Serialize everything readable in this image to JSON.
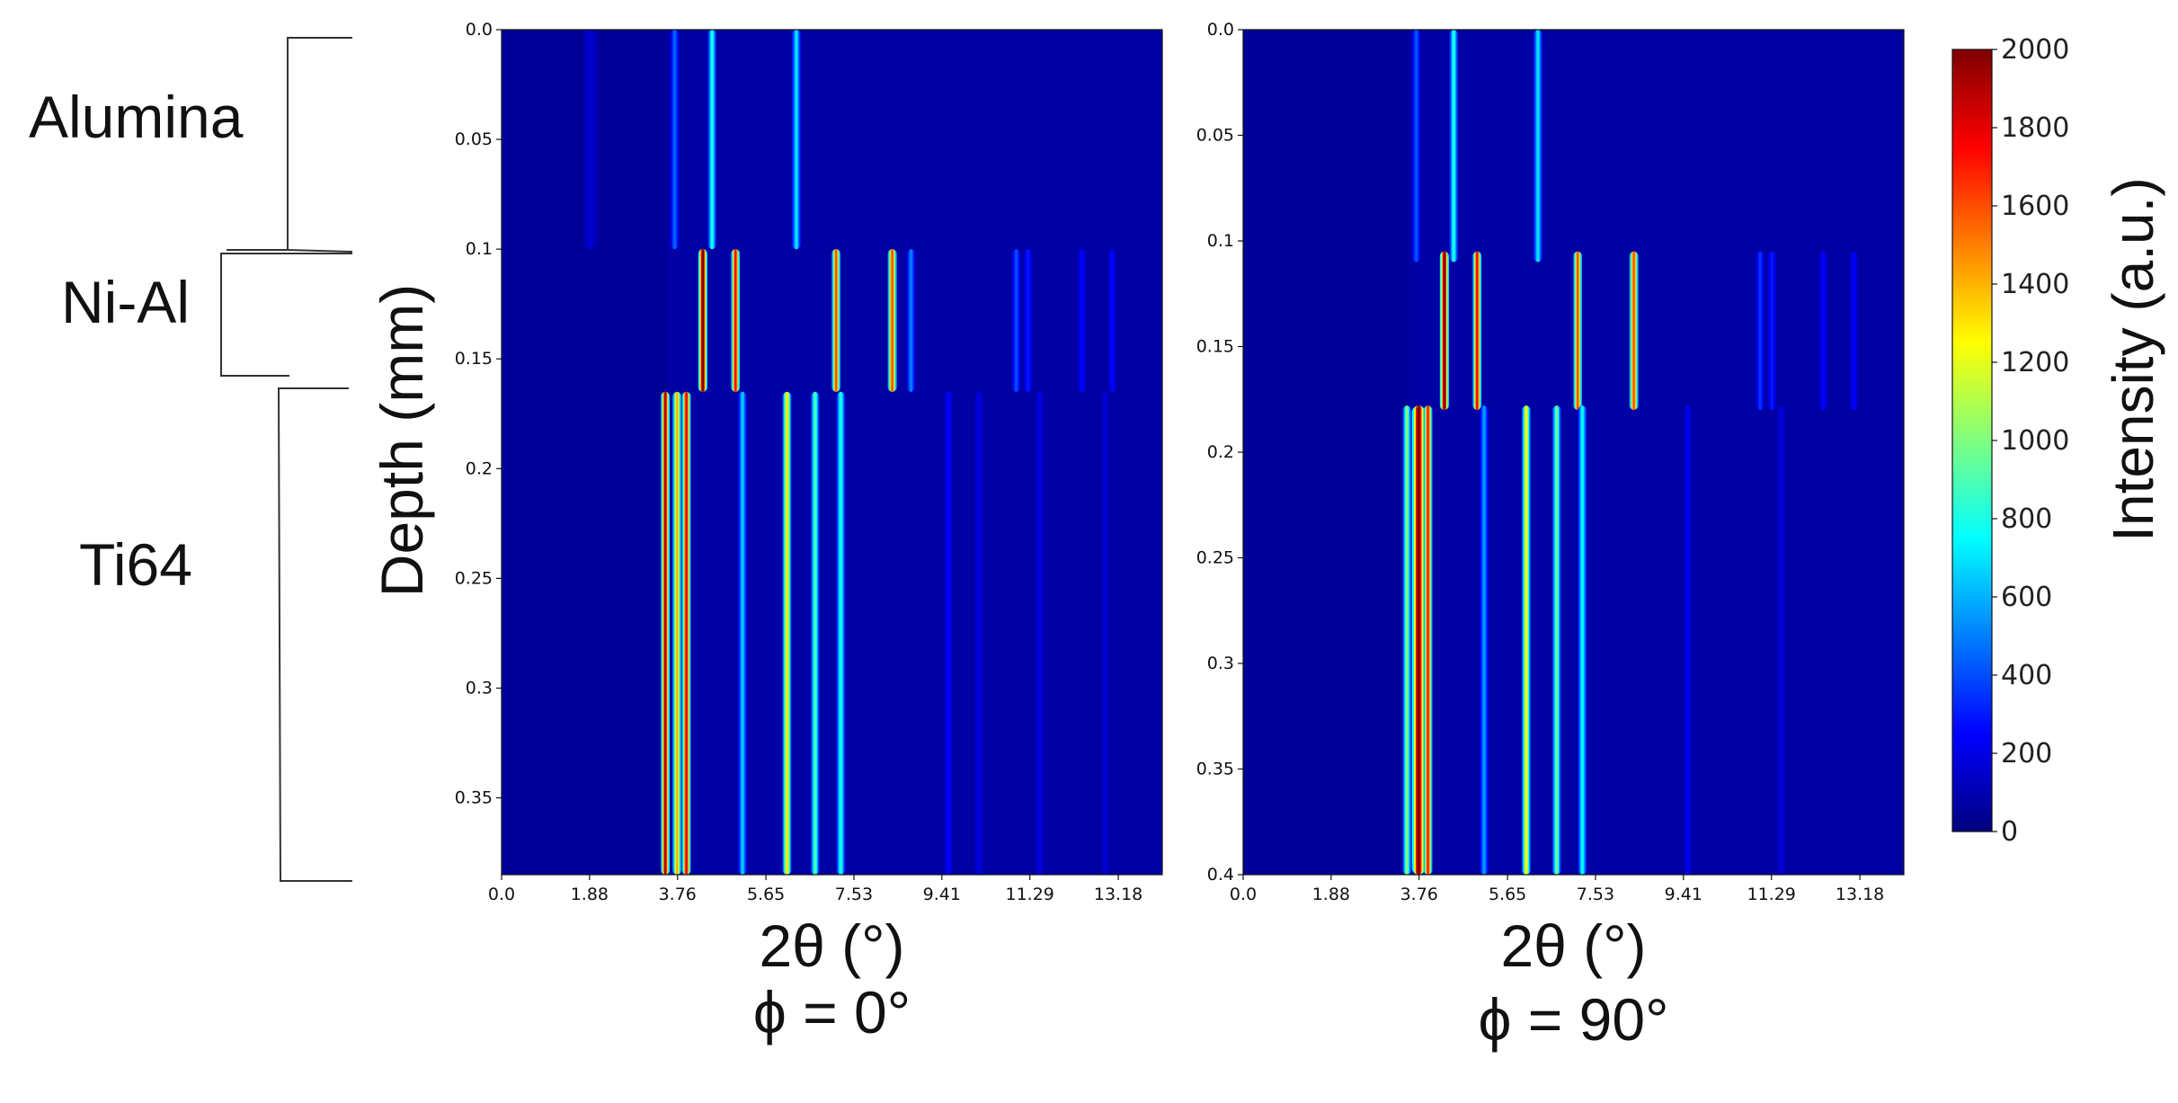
{
  "layers": [
    {
      "name": "Alumina",
      "depth_range": [
        0.0,
        0.1
      ]
    },
    {
      "name": "Ni-Al",
      "depth_range": [
        0.1,
        0.16
      ]
    },
    {
      "name": "Ti64",
      "depth_range": [
        0.16,
        0.385
      ]
    }
  ],
  "colorbar": {
    "label": "Intensity (a.u.)",
    "min": 0,
    "max": 2000,
    "ticks": [
      "0",
      "200",
      "400",
      "600",
      "800",
      "1000",
      "1200",
      "1400",
      "1600",
      "1800",
      "2000"
    ],
    "colormap": [
      "#00007f",
      "#0000ff",
      "#007fff",
      "#00ffff",
      "#7fff7f",
      "#ffff00",
      "#ff7f00",
      "#ff0000",
      "#7f0000"
    ]
  },
  "chart_data": [
    {
      "type": "heatmap",
      "xlabel": "2θ (°)",
      "subtitle": "ϕ = 0°",
      "ylabel": "Depth (mm)",
      "xlim": [
        0,
        14.12
      ],
      "ylim": [
        0.385,
        0.0
      ],
      "x_ticks": [
        "0.0",
        "1.88",
        "3.76",
        "5.65",
        "7.53",
        "9.41",
        "11.29",
        "13.18"
      ],
      "y_ticks": [
        "0.0",
        "0.05",
        "0.1",
        "0.15",
        "0.2",
        "0.25",
        "0.3",
        "0.35"
      ],
      "peaks": [
        {
          "two_theta": 1.9,
          "depth_from": 0.0,
          "depth_to": 0.1,
          "intensity": 160,
          "width": 0.1
        },
        {
          "two_theta": 3.7,
          "depth_from": 0.0,
          "depth_to": 0.1,
          "intensity": 450,
          "width": 0.05
        },
        {
          "two_theta": 4.5,
          "depth_from": 0.0,
          "depth_to": 0.1,
          "intensity": 800,
          "width": 0.05
        },
        {
          "two_theta": 6.3,
          "depth_from": 0.0,
          "depth_to": 0.1,
          "intensity": 700,
          "width": 0.06
        },
        {
          "two_theta": 4.3,
          "depth_from": 0.1,
          "depth_to": 0.165,
          "intensity": 2000,
          "width": 0.06
        },
        {
          "two_theta": 5.0,
          "depth_from": 0.1,
          "depth_to": 0.165,
          "intensity": 1750,
          "width": 0.05
        },
        {
          "two_theta": 7.15,
          "depth_from": 0.1,
          "depth_to": 0.165,
          "intensity": 1600,
          "width": 0.05
        },
        {
          "two_theta": 8.35,
          "depth_from": 0.1,
          "depth_to": 0.165,
          "intensity": 1600,
          "width": 0.06
        },
        {
          "two_theta": 8.75,
          "depth_from": 0.1,
          "depth_to": 0.165,
          "intensity": 500,
          "width": 0.05
        },
        {
          "two_theta": 11.0,
          "depth_from": 0.1,
          "depth_to": 0.165,
          "intensity": 400,
          "width": 0.05
        },
        {
          "two_theta": 11.25,
          "depth_from": 0.1,
          "depth_to": 0.165,
          "intensity": 300,
          "width": 0.04
        },
        {
          "two_theta": 12.4,
          "depth_from": 0.1,
          "depth_to": 0.165,
          "intensity": 250,
          "width": 0.04
        },
        {
          "two_theta": 13.05,
          "depth_from": 0.1,
          "depth_to": 0.165,
          "intensity": 250,
          "width": 0.04
        },
        {
          "two_theta": 3.5,
          "depth_from": 0.165,
          "depth_to": 0.385,
          "intensity": 1900,
          "width": 0.05
        },
        {
          "two_theta": 3.75,
          "depth_from": 0.165,
          "depth_to": 0.385,
          "intensity": 1400,
          "width": 0.06
        },
        {
          "two_theta": 3.95,
          "depth_from": 0.165,
          "depth_to": 0.385,
          "intensity": 1800,
          "width": 0.05
        },
        {
          "two_theta": 5.15,
          "depth_from": 0.165,
          "depth_to": 0.385,
          "intensity": 650,
          "width": 0.05
        },
        {
          "two_theta": 6.1,
          "depth_from": 0.165,
          "depth_to": 0.385,
          "intensity": 1300,
          "width": 0.05
        },
        {
          "two_theta": 6.7,
          "depth_from": 0.165,
          "depth_to": 0.385,
          "intensity": 900,
          "width": 0.05
        },
        {
          "two_theta": 7.25,
          "depth_from": 0.165,
          "depth_to": 0.385,
          "intensity": 800,
          "width": 0.06
        },
        {
          "two_theta": 9.55,
          "depth_from": 0.165,
          "depth_to": 0.385,
          "intensity": 250,
          "width": 0.05
        },
        {
          "two_theta": 10.2,
          "depth_from": 0.165,
          "depth_to": 0.385,
          "intensity": 200,
          "width": 0.05
        },
        {
          "two_theta": 11.5,
          "depth_from": 0.165,
          "depth_to": 0.385,
          "intensity": 200,
          "width": 0.05
        },
        {
          "two_theta": 12.9,
          "depth_from": 0.165,
          "depth_to": 0.385,
          "intensity": 170,
          "width": 0.05
        }
      ]
    },
    {
      "type": "heatmap",
      "xlabel": "2θ (°)",
      "subtitle": "ϕ = 90°",
      "xlim": [
        0,
        14.12
      ],
      "ylim": [
        0.4,
        0.0
      ],
      "x_ticks": [
        "0.0",
        "1.88",
        "3.76",
        "5.65",
        "7.53",
        "9.41",
        "11.29",
        "13.18"
      ],
      "y_ticks": [
        "0.0",
        "0.05",
        "0.1",
        "0.15",
        "0.2",
        "0.25",
        "0.3",
        "0.35",
        "0.4"
      ],
      "peaks": [
        {
          "two_theta": 3.7,
          "depth_from": 0.0,
          "depth_to": 0.11,
          "intensity": 420,
          "width": 0.05
        },
        {
          "two_theta": 4.5,
          "depth_from": 0.0,
          "depth_to": 0.11,
          "intensity": 800,
          "width": 0.05
        },
        {
          "two_theta": 6.3,
          "depth_from": 0.0,
          "depth_to": 0.11,
          "intensity": 700,
          "width": 0.06
        },
        {
          "two_theta": 4.3,
          "depth_from": 0.105,
          "depth_to": 0.18,
          "intensity": 2000,
          "width": 0.06
        },
        {
          "two_theta": 5.0,
          "depth_from": 0.105,
          "depth_to": 0.18,
          "intensity": 1750,
          "width": 0.05
        },
        {
          "two_theta": 7.15,
          "depth_from": 0.105,
          "depth_to": 0.18,
          "intensity": 1600,
          "width": 0.05
        },
        {
          "two_theta": 8.35,
          "depth_from": 0.105,
          "depth_to": 0.18,
          "intensity": 1600,
          "width": 0.06
        },
        {
          "two_theta": 11.05,
          "depth_from": 0.105,
          "depth_to": 0.18,
          "intensity": 350,
          "width": 0.05
        },
        {
          "two_theta": 11.3,
          "depth_from": 0.105,
          "depth_to": 0.18,
          "intensity": 300,
          "width": 0.04
        },
        {
          "two_theta": 12.4,
          "depth_from": 0.105,
          "depth_to": 0.18,
          "intensity": 250,
          "width": 0.04
        },
        {
          "two_theta": 13.05,
          "depth_from": 0.105,
          "depth_to": 0.18,
          "intensity": 250,
          "width": 0.04
        },
        {
          "two_theta": 3.5,
          "depth_from": 0.178,
          "depth_to": 0.4,
          "intensity": 1000,
          "width": 0.05
        },
        {
          "two_theta": 3.75,
          "depth_from": 0.178,
          "depth_to": 0.4,
          "intensity": 2000,
          "width": 0.09
        },
        {
          "two_theta": 3.95,
          "depth_from": 0.178,
          "depth_to": 0.4,
          "intensity": 1700,
          "width": 0.05
        },
        {
          "two_theta": 5.15,
          "depth_from": 0.178,
          "depth_to": 0.4,
          "intensity": 550,
          "width": 0.05
        },
        {
          "two_theta": 6.05,
          "depth_from": 0.178,
          "depth_to": 0.4,
          "intensity": 1250,
          "width": 0.05
        },
        {
          "two_theta": 6.7,
          "depth_from": 0.178,
          "depth_to": 0.4,
          "intensity": 950,
          "width": 0.05
        },
        {
          "two_theta": 7.25,
          "depth_from": 0.178,
          "depth_to": 0.4,
          "intensity": 750,
          "width": 0.06
        },
        {
          "two_theta": 9.5,
          "depth_from": 0.178,
          "depth_to": 0.4,
          "intensity": 220,
          "width": 0.05
        },
        {
          "two_theta": 11.5,
          "depth_from": 0.178,
          "depth_to": 0.4,
          "intensity": 180,
          "width": 0.05
        }
      ]
    }
  ]
}
